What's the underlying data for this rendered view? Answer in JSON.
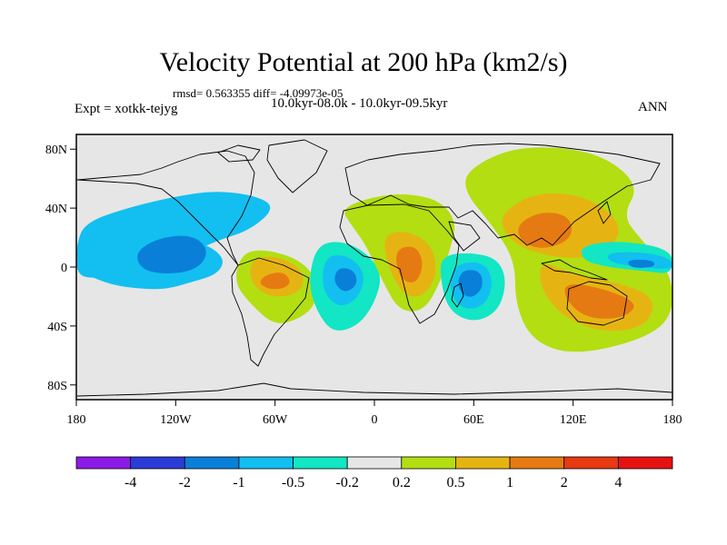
{
  "chart_data": {
    "type": "contour-map",
    "title": "Velocity Potential at 200 hPa (km2/s)",
    "stats": "rmsd= 0.563355 diff= -4.09973e-05",
    "experiment": "Expt = xotkk-tejyg",
    "period": "10.0kyr-08.0k - 10.0kyr-09.5kyr",
    "season": "ANN",
    "projection": "cylindrical equidistant",
    "lon_range": [
      -180,
      180
    ],
    "lat_range": [
      -90,
      90
    ],
    "lon_ticks": [
      {
        "value": -180,
        "label": "180"
      },
      {
        "value": -120,
        "label": "120W"
      },
      {
        "value": -60,
        "label": "60W"
      },
      {
        "value": 0,
        "label": "0"
      },
      {
        "value": 60,
        "label": "60E"
      },
      {
        "value": 120,
        "label": "120E"
      },
      {
        "value": 180,
        "label": "180"
      }
    ],
    "lat_ticks": [
      {
        "value": 80,
        "label": "80N"
      },
      {
        "value": 40,
        "label": "40N"
      },
      {
        "value": 0,
        "label": "0"
      },
      {
        "value": -40,
        "label": "40S"
      },
      {
        "value": -80,
        "label": "80S"
      }
    ],
    "levels": [
      -4,
      -2,
      -1,
      -0.5,
      -0.2,
      0.2,
      0.5,
      1,
      2,
      4
    ],
    "level_labels": [
      "-4",
      "-2",
      "-1",
      "-0.5",
      "-0.2",
      "0.2",
      "0.5",
      "1",
      "2",
      "4"
    ],
    "colors": [
      "#8b1ae6",
      "#2b3bd6",
      "#0a7fd8",
      "#12bff0",
      "#12e6c4",
      "#e6e6e6",
      "#b3de12",
      "#e6b412",
      "#e67a12",
      "#e63a12",
      "#e61212"
    ],
    "background_color": "#e6e6e6",
    "features": [
      {
        "name": "north-pacific-negative",
        "level": "-0.5",
        "region": "N Pacific / N America",
        "points": [
          [
            -175,
            30
          ],
          [
            -150,
            40
          ],
          [
            -120,
            48
          ],
          [
            -95,
            52
          ],
          [
            -70,
            48
          ],
          [
            -60,
            40
          ],
          [
            -75,
            25
          ],
          [
            -95,
            18
          ],
          [
            -120,
            5
          ],
          [
            -150,
            -5
          ],
          [
            -170,
            -8
          ],
          [
            -180,
            -5
          ],
          [
            -180,
            15
          ]
        ]
      },
      {
        "name": "east-pacific-negative-0.5",
        "level": "-0.5",
        "region": "Equatorial Pacific",
        "points": [
          [
            -180,
            -2
          ],
          [
            -160,
            -12
          ],
          [
            -140,
            -15
          ],
          [
            -125,
            -15
          ],
          [
            -110,
            -10
          ],
          [
            -95,
            -5
          ],
          [
            -90,
            5
          ],
          [
            -100,
            15
          ],
          [
            -120,
            20
          ],
          [
            -150,
            10
          ],
          [
            -175,
            5
          ]
        ]
      },
      {
        "name": "east-pacific-negative-1",
        "level": "-1",
        "region": "Equatorial Pacific",
        "points": [
          [
            -145,
            10
          ],
          [
            -130,
            20
          ],
          [
            -110,
            22
          ],
          [
            -100,
            12
          ],
          [
            -105,
            0
          ],
          [
            -120,
            -5
          ],
          [
            -140,
            -3
          ]
        ]
      },
      {
        "name": "south-america-positive-0.2",
        "level": "0.2",
        "region": "S America",
        "points": [
          [
            -80,
            10
          ],
          [
            -65,
            12
          ],
          [
            -45,
            5
          ],
          [
            -35,
            -8
          ],
          [
            -35,
            -25
          ],
          [
            -45,
            -35
          ],
          [
            -60,
            -40
          ],
          [
            -75,
            -25
          ],
          [
            -85,
            -10
          ]
        ]
      },
      {
        "name": "south-america-positive-0.5",
        "level": "0.5",
        "region": "S America",
        "points": [
          [
            -75,
            5
          ],
          [
            -60,
            8
          ],
          [
            -45,
            0
          ],
          [
            -42,
            -12
          ],
          [
            -50,
            -20
          ],
          [
            -65,
            -20
          ],
          [
            -75,
            -10
          ]
        ]
      },
      {
        "name": "south-america-positive-1",
        "level": "1",
        "region": "S America",
        "points": [
          [
            -65,
            -5
          ],
          [
            -55,
            -3
          ],
          [
            -50,
            -10
          ],
          [
            -55,
            -15
          ],
          [
            -65,
            -15
          ],
          [
            -70,
            -10
          ]
        ]
      },
      {
        "name": "atlantic-negative-0.2",
        "level": "-0.2",
        "region": "S Atlantic",
        "points": [
          [
            -35,
            15
          ],
          [
            -20,
            18
          ],
          [
            -5,
            10
          ],
          [
            5,
            -5
          ],
          [
            0,
            -25
          ],
          [
            -10,
            -40
          ],
          [
            -25,
            -45
          ],
          [
            -35,
            -30
          ],
          [
            -40,
            -10
          ]
        ]
      },
      {
        "name": "atlantic-negative-0.5",
        "level": "-0.5",
        "region": "S Atlantic",
        "points": [
          [
            -30,
            8
          ],
          [
            -15,
            8
          ],
          [
            -5,
            -5
          ],
          [
            -10,
            -22
          ],
          [
            -22,
            -28
          ],
          [
            -32,
            -15
          ]
        ]
      },
      {
        "name": "atlantic-negative-1",
        "level": "-1",
        "region": "S Atlantic",
        "points": [
          [
            -22,
            0
          ],
          [
            -12,
            -2
          ],
          [
            -10,
            -12
          ],
          [
            -18,
            -18
          ],
          [
            -25,
            -10
          ]
        ]
      },
      {
        "name": "africa-positive-0.2",
        "level": "0.2",
        "region": "Africa",
        "points": [
          [
            -20,
            40
          ],
          [
            0,
            48
          ],
          [
            20,
            50
          ],
          [
            40,
            45
          ],
          [
            50,
            30
          ],
          [
            45,
            10
          ],
          [
            40,
            -10
          ],
          [
            30,
            -30
          ],
          [
            15,
            -30
          ],
          [
            5,
            -10
          ],
          [
            -5,
            15
          ],
          [
            -15,
            30
          ]
        ]
      },
      {
        "name": "africa-positive-0.5",
        "level": "0.5",
        "region": "Africa",
        "points": [
          [
            5,
            22
          ],
          [
            20,
            25
          ],
          [
            35,
            15
          ],
          [
            38,
            -5
          ],
          [
            30,
            -20
          ],
          [
            18,
            -20
          ],
          [
            8,
            0
          ]
        ]
      },
      {
        "name": "africa-positive-1",
        "level": "1",
        "region": "Africa",
        "points": [
          [
            12,
            12
          ],
          [
            25,
            15
          ],
          [
            30,
            2
          ],
          [
            25,
            -12
          ],
          [
            15,
            -8
          ]
        ]
      },
      {
        "name": "indian-ocean-negative-0.2",
        "level": "-0.2",
        "region": "Indian Ocean",
        "points": [
          [
            40,
            8
          ],
          [
            60,
            10
          ],
          [
            75,
            5
          ],
          [
            80,
            -10
          ],
          [
            75,
            -30
          ],
          [
            60,
            -38
          ],
          [
            45,
            -30
          ],
          [
            40,
            -10
          ]
        ]
      },
      {
        "name": "indian-ocean-negative-0.5",
        "level": "-0.5",
        "region": "Indian Ocean",
        "points": [
          [
            48,
            2
          ],
          [
            65,
            4
          ],
          [
            72,
            -8
          ],
          [
            68,
            -25
          ],
          [
            55,
            -30
          ],
          [
            45,
            -18
          ]
        ]
      },
      {
        "name": "indian-ocean-negative-1",
        "level": "-1",
        "region": "Indian Ocean",
        "points": [
          [
            52,
            -2
          ],
          [
            64,
            -2
          ],
          [
            66,
            -14
          ],
          [
            58,
            -22
          ],
          [
            50,
            -15
          ]
        ]
      },
      {
        "name": "asia-australia-positive-0.2",
        "level": "0.2",
        "region": "Asia / W Pacific",
        "points": [
          [
            55,
            65
          ],
          [
            80,
            80
          ],
          [
            110,
            82
          ],
          [
            140,
            75
          ],
          [
            160,
            55
          ],
          [
            150,
            35
          ],
          [
            160,
            20
          ],
          [
            180,
            -5
          ],
          [
            180,
            -35
          ],
          [
            160,
            -50
          ],
          [
            120,
            -60
          ],
          [
            95,
            -50
          ],
          [
            85,
            -25
          ],
          [
            85,
            5
          ],
          [
            70,
            30
          ],
          [
            55,
            50
          ]
        ]
      },
      {
        "name": "asia-positive-0.5",
        "level": "0.5",
        "region": "Asia",
        "points": [
          [
            75,
            35
          ],
          [
            95,
            50
          ],
          [
            120,
            50
          ],
          [
            140,
            40
          ],
          [
            150,
            25
          ],
          [
            140,
            10
          ],
          [
            120,
            5
          ],
          [
            95,
            10
          ],
          [
            80,
            20
          ]
        ]
      },
      {
        "name": "asia-positive-1",
        "level": "1",
        "region": "Asia",
        "points": [
          [
            85,
            28
          ],
          [
            100,
            38
          ],
          [
            118,
            35
          ],
          [
            120,
            20
          ],
          [
            105,
            12
          ],
          [
            90,
            15
          ]
        ]
      },
      {
        "name": "maritime-continent-positive-0.5",
        "level": "0.5",
        "region": "Maritime Continent / Australia",
        "points": [
          [
            100,
            5
          ],
          [
            120,
            -5
          ],
          [
            145,
            -10
          ],
          [
            170,
            -20
          ],
          [
            165,
            -40
          ],
          [
            140,
            -45
          ],
          [
            115,
            -35
          ],
          [
            100,
            -15
          ]
        ]
      },
      {
        "name": "australia-positive-1",
        "level": "1",
        "region": "Australia",
        "points": [
          [
            115,
            -10
          ],
          [
            140,
            -15
          ],
          [
            160,
            -25
          ],
          [
            150,
            -35
          ],
          [
            128,
            -35
          ],
          [
            115,
            -22
          ]
        ]
      },
      {
        "name": "west-pacific-negative-0.2",
        "level": "-0.2",
        "region": "W Pacific",
        "points": [
          [
            125,
            15
          ],
          [
            150,
            18
          ],
          [
            180,
            12
          ],
          [
            180,
            -5
          ],
          [
            165,
            -3
          ],
          [
            140,
            0
          ],
          [
            125,
            5
          ]
        ]
      },
      {
        "name": "west-pacific-negative-0.5",
        "level": "-0.5",
        "region": "W Pacific",
        "points": [
          [
            140,
            10
          ],
          [
            165,
            10
          ],
          [
            180,
            5
          ],
          [
            180,
            -2
          ],
          [
            160,
            0
          ],
          [
            142,
            3
          ]
        ]
      },
      {
        "name": "west-pacific-negative-1",
        "level": "-1",
        "region": "W Pacific",
        "points": [
          [
            152,
            5
          ],
          [
            168,
            5
          ],
          [
            170,
            0
          ],
          [
            155,
            -1
          ]
        ]
      }
    ]
  }
}
